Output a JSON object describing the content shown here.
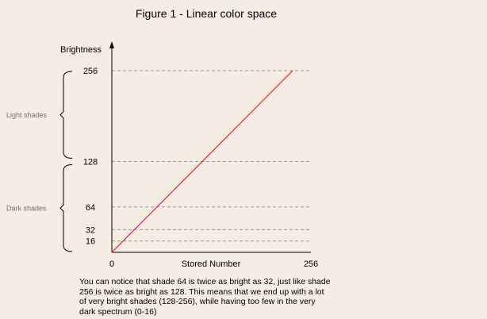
{
  "title": "Figure 1 - Linear color space",
  "chart_data": {
    "type": "line",
    "xlabel": "Stored Number",
    "ylabel": "Brightness",
    "xlim": [
      0,
      256
    ],
    "ylim": [
      0,
      256
    ],
    "x_ticks": [
      {
        "value": 0,
        "label": "0"
      },
      {
        "value": 256,
        "label": "256"
      }
    ],
    "y_ticks": [
      {
        "value": 16,
        "label": "16"
      },
      {
        "value": 32,
        "label": "32"
      },
      {
        "value": 64,
        "label": "64"
      },
      {
        "value": 128,
        "label": "128"
      },
      {
        "value": 256,
        "label": "256"
      }
    ],
    "series": [
      {
        "x": [
          0,
          256
        ],
        "y": [
          0,
          256
        ],
        "color": "#ff0000"
      }
    ],
    "grid": "horizontal dashed at y ticks",
    "brackets": [
      {
        "label": "Light shades",
        "from": 128,
        "to": 256
      },
      {
        "label": "Dark shades",
        "from": 0,
        "to": 128
      }
    ]
  },
  "caption": "You can notice that shade 64 is twice as bright as 32, just like shade 256 is twice as bright as 128. This means that we end up with a lot of very bright shades (128-256), while having too few in the very dark spectrum (0-16)"
}
